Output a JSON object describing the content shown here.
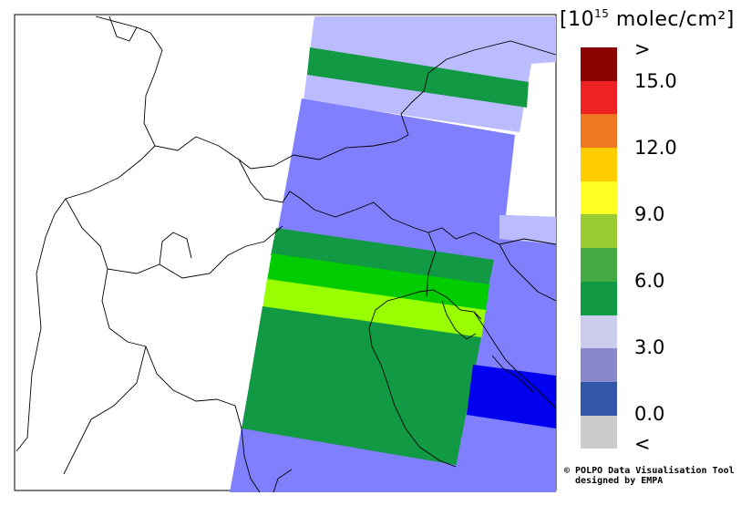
{
  "legend": {
    "unit_prefix": "[10",
    "unit_exp": "15",
    "unit_suffix": " molec/cm²]",
    "colors": [
      "#8b0000",
      "#ee2222",
      "#ee7722",
      "#ffcc00",
      "#ffff22",
      "#99cc33",
      "#44aa44",
      "#119944",
      "#ccccee",
      "#8888cc",
      "#3355aa",
      "#cccccc"
    ],
    "ticks": [
      ">",
      "15.0",
      "12.0",
      "9.0",
      "6.0",
      "3.0",
      "0.0",
      "<"
    ]
  },
  "credit": {
    "line1": "© POLPO Data Visualisation Tool",
    "line2": "designed by EMPA"
  },
  "map_fill_colors": {
    "very_low": "#bbbbff",
    "low": "#8080ff",
    "dark_blue": "#0000ee",
    "green": "#119944",
    "bright_green": "#00cc00",
    "yellow_green": "#99ff00"
  }
}
